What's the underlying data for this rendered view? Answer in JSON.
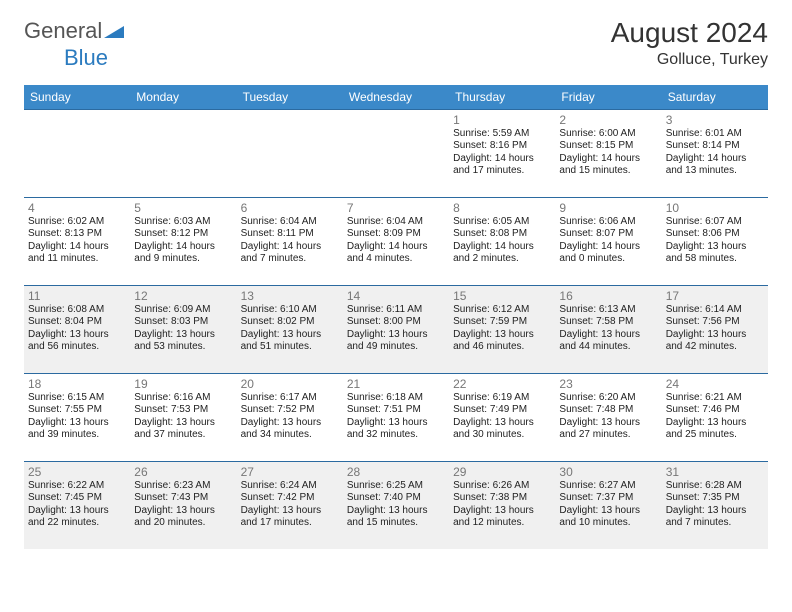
{
  "brand": {
    "text1": "General",
    "text2": "Blue"
  },
  "title": "August 2024",
  "location": "Golluce, Turkey",
  "headerBg": "#3b89c9",
  "rowBorder": "#2b6aa0",
  "shadeBg": "#f0f0f0",
  "dayNames": [
    "Sunday",
    "Monday",
    "Tuesday",
    "Wednesday",
    "Thursday",
    "Friday",
    "Saturday"
  ],
  "weeks": [
    {
      "shade": false,
      "days": [
        {
          "num": "",
          "lines": []
        },
        {
          "num": "",
          "lines": []
        },
        {
          "num": "",
          "lines": []
        },
        {
          "num": "",
          "lines": []
        },
        {
          "num": "1",
          "lines": [
            "Sunrise: 5:59 AM",
            "Sunset: 8:16 PM",
            "Daylight: 14 hours",
            "and 17 minutes."
          ]
        },
        {
          "num": "2",
          "lines": [
            "Sunrise: 6:00 AM",
            "Sunset: 8:15 PM",
            "Daylight: 14 hours",
            "and 15 minutes."
          ]
        },
        {
          "num": "3",
          "lines": [
            "Sunrise: 6:01 AM",
            "Sunset: 8:14 PM",
            "Daylight: 14 hours",
            "and 13 minutes."
          ]
        }
      ]
    },
    {
      "shade": false,
      "days": [
        {
          "num": "4",
          "lines": [
            "Sunrise: 6:02 AM",
            "Sunset: 8:13 PM",
            "Daylight: 14 hours",
            "and 11 minutes."
          ]
        },
        {
          "num": "5",
          "lines": [
            "Sunrise: 6:03 AM",
            "Sunset: 8:12 PM",
            "Daylight: 14 hours",
            "and 9 minutes."
          ]
        },
        {
          "num": "6",
          "lines": [
            "Sunrise: 6:04 AM",
            "Sunset: 8:11 PM",
            "Daylight: 14 hours",
            "and 7 minutes."
          ]
        },
        {
          "num": "7",
          "lines": [
            "Sunrise: 6:04 AM",
            "Sunset: 8:09 PM",
            "Daylight: 14 hours",
            "and 4 minutes."
          ]
        },
        {
          "num": "8",
          "lines": [
            "Sunrise: 6:05 AM",
            "Sunset: 8:08 PM",
            "Daylight: 14 hours",
            "and 2 minutes."
          ]
        },
        {
          "num": "9",
          "lines": [
            "Sunrise: 6:06 AM",
            "Sunset: 8:07 PM",
            "Daylight: 14 hours",
            "and 0 minutes."
          ]
        },
        {
          "num": "10",
          "lines": [
            "Sunrise: 6:07 AM",
            "Sunset: 8:06 PM",
            "Daylight: 13 hours",
            "and 58 minutes."
          ]
        }
      ]
    },
    {
      "shade": true,
      "days": [
        {
          "num": "11",
          "lines": [
            "Sunrise: 6:08 AM",
            "Sunset: 8:04 PM",
            "Daylight: 13 hours",
            "and 56 minutes."
          ]
        },
        {
          "num": "12",
          "lines": [
            "Sunrise: 6:09 AM",
            "Sunset: 8:03 PM",
            "Daylight: 13 hours",
            "and 53 minutes."
          ]
        },
        {
          "num": "13",
          "lines": [
            "Sunrise: 6:10 AM",
            "Sunset: 8:02 PM",
            "Daylight: 13 hours",
            "and 51 minutes."
          ]
        },
        {
          "num": "14",
          "lines": [
            "Sunrise: 6:11 AM",
            "Sunset: 8:00 PM",
            "Daylight: 13 hours",
            "and 49 minutes."
          ]
        },
        {
          "num": "15",
          "lines": [
            "Sunrise: 6:12 AM",
            "Sunset: 7:59 PM",
            "Daylight: 13 hours",
            "and 46 minutes."
          ]
        },
        {
          "num": "16",
          "lines": [
            "Sunrise: 6:13 AM",
            "Sunset: 7:58 PM",
            "Daylight: 13 hours",
            "and 44 minutes."
          ]
        },
        {
          "num": "17",
          "lines": [
            "Sunrise: 6:14 AM",
            "Sunset: 7:56 PM",
            "Daylight: 13 hours",
            "and 42 minutes."
          ]
        }
      ]
    },
    {
      "shade": false,
      "days": [
        {
          "num": "18",
          "lines": [
            "Sunrise: 6:15 AM",
            "Sunset: 7:55 PM",
            "Daylight: 13 hours",
            "and 39 minutes."
          ]
        },
        {
          "num": "19",
          "lines": [
            "Sunrise: 6:16 AM",
            "Sunset: 7:53 PM",
            "Daylight: 13 hours",
            "and 37 minutes."
          ]
        },
        {
          "num": "20",
          "lines": [
            "Sunrise: 6:17 AM",
            "Sunset: 7:52 PM",
            "Daylight: 13 hours",
            "and 34 minutes."
          ]
        },
        {
          "num": "21",
          "lines": [
            "Sunrise: 6:18 AM",
            "Sunset: 7:51 PM",
            "Daylight: 13 hours",
            "and 32 minutes."
          ]
        },
        {
          "num": "22",
          "lines": [
            "Sunrise: 6:19 AM",
            "Sunset: 7:49 PM",
            "Daylight: 13 hours",
            "and 30 minutes."
          ]
        },
        {
          "num": "23",
          "lines": [
            "Sunrise: 6:20 AM",
            "Sunset: 7:48 PM",
            "Daylight: 13 hours",
            "and 27 minutes."
          ]
        },
        {
          "num": "24",
          "lines": [
            "Sunrise: 6:21 AM",
            "Sunset: 7:46 PM",
            "Daylight: 13 hours",
            "and 25 minutes."
          ]
        }
      ]
    },
    {
      "shade": true,
      "days": [
        {
          "num": "25",
          "lines": [
            "Sunrise: 6:22 AM",
            "Sunset: 7:45 PM",
            "Daylight: 13 hours",
            "and 22 minutes."
          ]
        },
        {
          "num": "26",
          "lines": [
            "Sunrise: 6:23 AM",
            "Sunset: 7:43 PM",
            "Daylight: 13 hours",
            "and 20 minutes."
          ]
        },
        {
          "num": "27",
          "lines": [
            "Sunrise: 6:24 AM",
            "Sunset: 7:42 PM",
            "Daylight: 13 hours",
            "and 17 minutes."
          ]
        },
        {
          "num": "28",
          "lines": [
            "Sunrise: 6:25 AM",
            "Sunset: 7:40 PM",
            "Daylight: 13 hours",
            "and 15 minutes."
          ]
        },
        {
          "num": "29",
          "lines": [
            "Sunrise: 6:26 AM",
            "Sunset: 7:38 PM",
            "Daylight: 13 hours",
            "and 12 minutes."
          ]
        },
        {
          "num": "30",
          "lines": [
            "Sunrise: 6:27 AM",
            "Sunset: 7:37 PM",
            "Daylight: 13 hours",
            "and 10 minutes."
          ]
        },
        {
          "num": "31",
          "lines": [
            "Sunrise: 6:28 AM",
            "Sunset: 7:35 PM",
            "Daylight: 13 hours",
            "and 7 minutes."
          ]
        }
      ]
    }
  ]
}
